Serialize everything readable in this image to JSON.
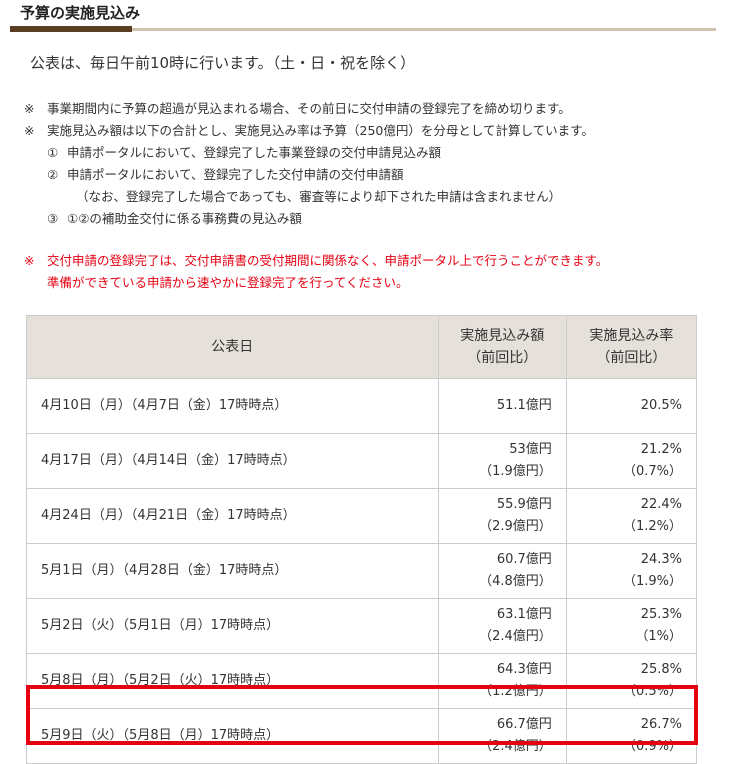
{
  "section": {
    "title": "予算の実施見込み"
  },
  "announcement": "公表は、毎日午前10時に行います。（土・日・祝を除く）",
  "notes": [
    {
      "mark": "※",
      "text": "事業期間内に予算の超過が見込まれる場合、その前日に交付申請の登録完了を締め切ります。"
    },
    {
      "mark": "※",
      "text": "実施見込み額は以下の合計とし、実施見込み率は予算（250億円）を分母として計算しています。"
    }
  ],
  "sub_notes": [
    {
      "num": "①",
      "text": "申請ポータルにおいて、登録完了した事業登録の交付申請見込み額"
    },
    {
      "num": "②",
      "text": "申請ポータルにおいて、登録完了した交付申請の交付申請額"
    },
    {
      "num": "",
      "text": "（なお、登録完了した場合であっても、審査等により却下された申請は含まれません）"
    },
    {
      "num": "③",
      "text": "①②の補助金交付に係る事務費の見込み額"
    }
  ],
  "red_note": {
    "mark": "※",
    "line1": "交付申請の登録完了は、交付申請書の受付期間に関係なく、申請ポータル上で行うことができます。",
    "line2": "準備ができている申請から速やかに登録完了を行ってください。"
  },
  "table": {
    "headers": {
      "date": "公表日",
      "amount_line1": "実施見込み額",
      "amount_line2": "（前回比）",
      "rate_line1": "実施見込み率",
      "rate_line2": "（前回比）"
    },
    "rows": [
      {
        "date": "4月10日（月）（4月7日（金）17時時点）",
        "amount": "51.1億円",
        "amount_diff": "",
        "rate": "20.5%",
        "rate_diff": ""
      },
      {
        "date": "4月17日（月）（4月14日（金）17時時点）",
        "amount": "53億円",
        "amount_diff": "（1.9億円）",
        "rate": "21.2%",
        "rate_diff": "（0.7%）"
      },
      {
        "date": "4月24日（月）（4月21日（金）17時時点）",
        "amount": "55.9億円",
        "amount_diff": "（2.9億円）",
        "rate": "22.4%",
        "rate_diff": "（1.2%）"
      },
      {
        "date": "5月1日（月）（4月28日（金）17時時点）",
        "amount": "60.7億円",
        "amount_diff": "（4.8億円）",
        "rate": "24.3%",
        "rate_diff": "（1.9%）"
      },
      {
        "date": "5月2日（火）（5月1日（月）17時時点）",
        "amount": "63.1億円",
        "amount_diff": "（2.4億円）",
        "rate": "25.3%",
        "rate_diff": "（1%）"
      },
      {
        "date": "5月8日（月）（5月2日（火）17時時点）",
        "amount": "64.3億円",
        "amount_diff": "（1.2億円）",
        "rate": "25.8%",
        "rate_diff": "（0.5%）"
      },
      {
        "date": "5月9日（火）（5月8日（月）17時時点）",
        "amount": "66.7億円",
        "amount_diff": "（2.4億円）",
        "rate": "26.7%",
        "rate_diff": "（0.9%）"
      }
    ]
  },
  "colors": {
    "highlight": "#e60012",
    "header_bg": "#e5e0d9",
    "rule_dark": "#5a3e24",
    "rule_light": "#cfc3ad"
  }
}
